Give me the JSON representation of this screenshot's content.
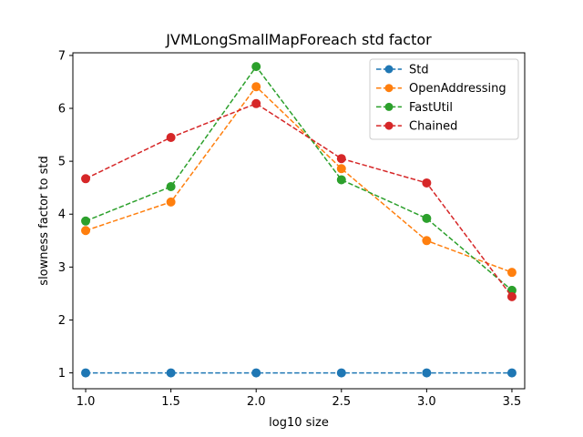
{
  "chart_data": {
    "type": "line",
    "title": "JVMLongSmallMapForeach std factor",
    "xlabel": "log10 size",
    "ylabel": "slowness factor to std",
    "xlim": [
      0.925,
      3.575
    ],
    "ylim": [
      0.7,
      7.05
    ],
    "xticks": [
      1.0,
      1.5,
      2.0,
      2.5,
      3.0,
      3.5
    ],
    "xtick_labels": [
      "1.0",
      "1.5",
      "2.0",
      "2.5",
      "3.0",
      "3.5"
    ],
    "yticks": [
      1,
      2,
      3,
      4,
      5,
      6,
      7
    ],
    "ytick_labels": [
      "1",
      "2",
      "3",
      "4",
      "5",
      "6",
      "7"
    ],
    "grid": false,
    "legend_position": "top-right",
    "x": [
      1.0,
      1.5,
      2.0,
      2.5,
      3.0,
      3.5
    ],
    "series": [
      {
        "name": "Std",
        "color": "#1f77b4",
        "values": [
          1.0,
          1.0,
          1.0,
          1.0,
          1.0,
          1.0
        ]
      },
      {
        "name": "OpenAddressing",
        "color": "#ff7f0e",
        "values": [
          3.69,
          4.23,
          6.41,
          4.86,
          3.5,
          2.9
        ]
      },
      {
        "name": "FastUtil",
        "color": "#2ca02c",
        "values": [
          3.87,
          4.52,
          6.79,
          4.65,
          3.92,
          2.56
        ]
      },
      {
        "name": "Chained",
        "color": "#d62728",
        "values": [
          4.67,
          5.45,
          6.09,
          5.05,
          4.59,
          2.44
        ]
      }
    ]
  }
}
